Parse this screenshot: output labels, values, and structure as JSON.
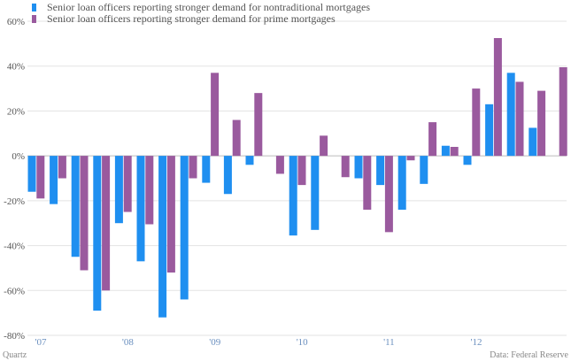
{
  "legend": {
    "items": [
      {
        "label": "Senior loan officers reporting stronger demand for nontraditional mortgages",
        "color": "#1f8ff0"
      },
      {
        "label": "Senior loan officers reporting stronger demand for prime mortgages",
        "color": "#9a5a9e"
      }
    ]
  },
  "footer": {
    "source_left": "Quartz",
    "source_right": "Data: Federal Reserve"
  },
  "chart_data": {
    "type": "bar",
    "ylim": [
      -80,
      60
    ],
    "yticks": [
      -80,
      -60,
      -40,
      -20,
      0,
      20,
      40,
      60
    ],
    "ytick_labels": [
      "-80%",
      "-60%",
      "-40%",
      "-20%",
      "0%",
      "20%",
      "40%",
      "60%"
    ],
    "xtick_labels": [
      {
        "label": "'07",
        "index": 0
      },
      {
        "label": "'08",
        "index": 4
      },
      {
        "label": "'09",
        "index": 8
      },
      {
        "label": "'10",
        "index": 12
      },
      {
        "label": "'11",
        "index": 16
      },
      {
        "label": "'12",
        "index": 20
      }
    ],
    "grid": true,
    "legend_position": "top-left",
    "series": [
      {
        "name": "Senior loan officers reporting stronger demand for nontraditional mortgages",
        "color": "#1f8ff0",
        "values": [
          -16,
          -21.5,
          -45,
          -69,
          -30,
          -47,
          -72,
          -64,
          -12,
          -17,
          -4,
          0,
          -35.5,
          -33,
          0,
          -10,
          -13,
          -24,
          -12.5,
          4.5,
          -4,
          23,
          37,
          12.5,
          0,
          0
        ]
      },
      {
        "name": "Senior loan officers reporting stronger demand for prime mortgages",
        "color": "#9a5a9e",
        "values": [
          -19,
          -10,
          -51,
          -60,
          -25,
          -30.5,
          -52,
          -10,
          37,
          16,
          28,
          -8,
          -13,
          9,
          -9.5,
          -24,
          -34,
          -2,
          15,
          4,
          30,
          52.5,
          33,
          29,
          39.5,
          0
        ]
      }
    ]
  }
}
